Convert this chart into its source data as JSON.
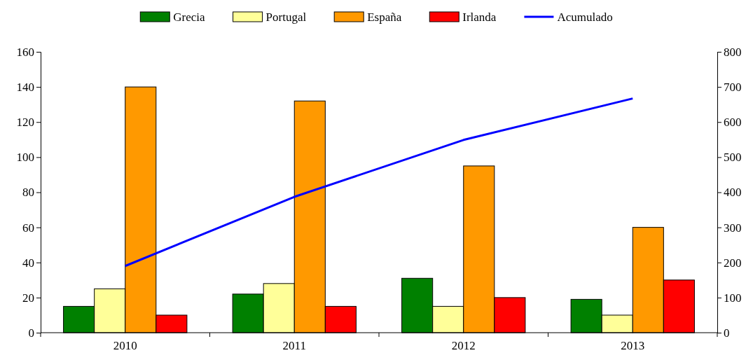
{
  "chart_data": {
    "type": "bar",
    "categories": [
      "2010",
      "2011",
      "2012",
      "2013"
    ],
    "series": [
      {
        "name": "Grecia",
        "color": "#008000",
        "values": [
          15,
          22,
          31,
          19
        ]
      },
      {
        "name": "Portugal",
        "color": "#ffff99",
        "values": [
          25,
          28,
          15,
          10
        ]
      },
      {
        "name": "España",
        "color": "#ff9900",
        "values": [
          140,
          132,
          95,
          60
        ]
      },
      {
        "name": "Irlanda",
        "color": "#ff0000",
        "values": [
          10,
          15,
          20,
          30
        ]
      },
      {
        "name": "Acumulado",
        "type": "line",
        "axis": "y2",
        "color": "#0000ff",
        "values": [
          190,
          387,
          549,
          667
        ]
      }
    ],
    "ylim": [
      0,
      160
    ],
    "yticks": [
      0,
      20,
      40,
      60,
      80,
      100,
      120,
      140,
      160
    ],
    "y2lim": [
      0,
      800
    ],
    "y2ticks": [
      0,
      100,
      200,
      300,
      400,
      500,
      600,
      700,
      800
    ],
    "legend": "top",
    "grid": false,
    "marker": "none"
  }
}
